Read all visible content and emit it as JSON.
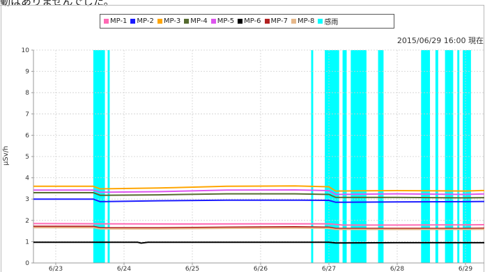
{
  "caption": "動はありませんでした。",
  "timestamp": "2015/06/29 16:00 現在",
  "chart_data": {
    "type": "line",
    "ylabel": "μSv/h",
    "ylim": [
      0,
      10
    ],
    "yticks": [
      "0",
      "1",
      "2",
      "3",
      "4",
      "5",
      "6",
      "7",
      "8",
      "9",
      "10"
    ],
    "xlim": [
      0,
      7.2
    ],
    "xticks": [
      {
        "x": 0.0,
        "label": "6/23"
      },
      {
        "x": 1.0,
        "label": "6/24"
      },
      {
        "x": 2.0,
        "label": "6/25"
      },
      {
        "x": 3.0,
        "label": "6/26"
      },
      {
        "x": 4.0,
        "label": "6/27"
      },
      {
        "x": 5.0,
        "label": "6/28"
      },
      {
        "x": 6.0,
        "label": "6/29"
      }
    ],
    "grid": true,
    "legend_position": "top",
    "series": [
      {
        "name": "MP-1",
        "color": "#ff69b4",
        "points": [
          [
            -0.45,
            1.85
          ],
          [
            0.7,
            1.84
          ],
          [
            2.0,
            1.83
          ],
          [
            3.5,
            1.84
          ],
          [
            4.0,
            1.84
          ],
          [
            4.2,
            1.78
          ],
          [
            5.0,
            1.78
          ],
          [
            6.0,
            1.79
          ],
          [
            7.2,
            1.81
          ]
        ]
      },
      {
        "name": "MP-2",
        "color": "#1a1aff",
        "points": [
          [
            -0.45,
            3.0
          ],
          [
            0.55,
            3.0
          ],
          [
            0.65,
            2.88
          ],
          [
            1.5,
            2.92
          ],
          [
            2.5,
            2.95
          ],
          [
            3.6,
            2.95
          ],
          [
            4.0,
            2.94
          ],
          [
            4.1,
            2.85
          ],
          [
            5.0,
            2.87
          ],
          [
            6.0,
            2.88
          ],
          [
            7.2,
            2.92
          ]
        ]
      },
      {
        "name": "MP-3",
        "color": "#ffa500",
        "points": [
          [
            -0.45,
            3.6
          ],
          [
            0.55,
            3.6
          ],
          [
            0.65,
            3.48
          ],
          [
            1.5,
            3.52
          ],
          [
            2.5,
            3.6
          ],
          [
            3.5,
            3.62
          ],
          [
            4.0,
            3.58
          ],
          [
            4.1,
            3.38
          ],
          [
            5.0,
            3.4
          ],
          [
            6.0,
            3.38
          ],
          [
            7.2,
            3.5
          ]
        ]
      },
      {
        "name": "MP-4",
        "color": "#556b2f",
        "points": [
          [
            -0.45,
            3.3
          ],
          [
            0.55,
            3.3
          ],
          [
            0.65,
            3.18
          ],
          [
            1.5,
            3.2
          ],
          [
            2.5,
            3.25
          ],
          [
            3.5,
            3.25
          ],
          [
            4.0,
            3.22
          ],
          [
            4.1,
            3.08
          ],
          [
            5.0,
            3.08
          ],
          [
            6.0,
            3.06
          ],
          [
            7.2,
            3.1
          ]
        ]
      },
      {
        "name": "MP-5",
        "color": "#dd55ee",
        "points": [
          [
            -0.45,
            3.42
          ],
          [
            0.55,
            3.42
          ],
          [
            0.65,
            3.32
          ],
          [
            1.5,
            3.35
          ],
          [
            2.5,
            3.42
          ],
          [
            3.5,
            3.43
          ],
          [
            4.0,
            3.4
          ],
          [
            4.1,
            3.22
          ],
          [
            5.0,
            3.25
          ],
          [
            6.0,
            3.22
          ],
          [
            7.2,
            3.32
          ]
        ]
      },
      {
        "name": "MP-6",
        "color": "#000000",
        "points": [
          [
            -0.45,
            0.97
          ],
          [
            1.2,
            0.97
          ],
          [
            1.25,
            0.93
          ],
          [
            1.35,
            0.97
          ],
          [
            4.0,
            0.97
          ],
          [
            4.1,
            0.94
          ],
          [
            5.0,
            0.95
          ],
          [
            6.0,
            0.95
          ],
          [
            7.2,
            0.96
          ]
        ]
      },
      {
        "name": "MP-7",
        "color": "#b22222",
        "points": [
          [
            -0.45,
            1.72
          ],
          [
            0.55,
            1.72
          ],
          [
            0.65,
            1.65
          ],
          [
            1.5,
            1.65
          ],
          [
            2.5,
            1.68
          ],
          [
            3.5,
            1.7
          ],
          [
            4.0,
            1.68
          ],
          [
            4.1,
            1.62
          ],
          [
            5.0,
            1.62
          ],
          [
            6.0,
            1.62
          ],
          [
            7.2,
            1.66
          ]
        ]
      },
      {
        "name": "MP-8",
        "color": "#e6b88a",
        "points": [
          [
            -0.45,
            1.66
          ],
          [
            0.55,
            1.66
          ],
          [
            0.65,
            1.6
          ],
          [
            1.5,
            1.6
          ],
          [
            2.5,
            1.63
          ],
          [
            3.5,
            1.64
          ],
          [
            4.0,
            1.63
          ],
          [
            4.1,
            1.58
          ],
          [
            5.0,
            1.58
          ],
          [
            6.0,
            1.58
          ],
          [
            7.2,
            1.61
          ]
        ]
      }
    ],
    "rain": {
      "name": "感雨",
      "color": "#00ffff",
      "intervals": [
        [
          0.55,
          0.72
        ],
        [
          0.76,
          0.79
        ],
        [
          3.74,
          3.77
        ],
        [
          3.94,
          4.15
        ],
        [
          4.2,
          4.26
        ],
        [
          4.32,
          4.55
        ],
        [
          4.72,
          4.8
        ],
        [
          5.35,
          5.48
        ],
        [
          5.56,
          5.6
        ],
        [
          5.7,
          5.82
        ],
        [
          5.88,
          5.91
        ],
        [
          5.96,
          6.08
        ]
      ]
    }
  }
}
